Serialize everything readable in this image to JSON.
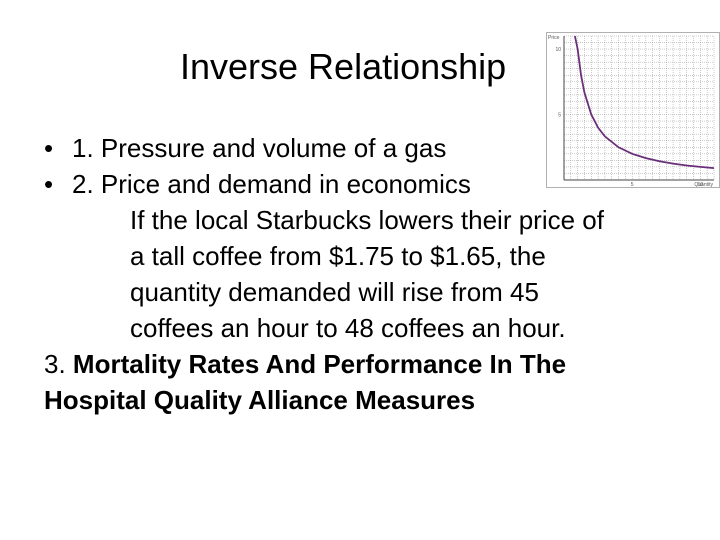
{
  "slide": {
    "title": "Inverse Relationship",
    "bullets": [
      {
        "marker": "•",
        "text": "1. Pressure and volume of a gas"
      },
      {
        "marker": "•",
        "text": "2. Price and demand in economics"
      }
    ],
    "example_lines": [
      "If the local Starbucks lowers their price of",
      "a tall coffee from $1.75 to $1.65, the",
      "quantity demanded will rise from 45",
      "coffees an hour to 48 coffees an hour."
    ],
    "item3_number": "3. ",
    "item3_bold_line1": "Mortality Rates And Performance In The",
    "item3_bold_line2": "Hospital Quality Alliance Measures"
  },
  "chart_data": {
    "type": "line",
    "title": "",
    "xlabel": "Quantity",
    "ylabel": "Price",
    "x_ticks": [
      "5",
      "10"
    ],
    "y_ticks": [
      "5",
      "10"
    ],
    "xlim": [
      0,
      11
    ],
    "ylim": [
      0,
      11
    ],
    "grid": true,
    "series": [
      {
        "values_xy": [
          [
            0.8,
            11
          ],
          [
            1,
            10
          ],
          [
            1.25,
            8
          ],
          [
            1.5,
            6.67
          ],
          [
            2,
            5
          ],
          [
            2.5,
            4
          ],
          [
            3,
            3.33
          ],
          [
            4,
            2.5
          ],
          [
            5,
            2
          ],
          [
            6,
            1.67
          ],
          [
            7,
            1.43
          ],
          [
            8,
            1.25
          ],
          [
            9,
            1.11
          ],
          [
            10,
            1
          ],
          [
            11,
            0.91
          ]
        ]
      }
    ],
    "colors": {
      "line": "#6a2f7a",
      "grid": "#9a9a9a"
    }
  }
}
